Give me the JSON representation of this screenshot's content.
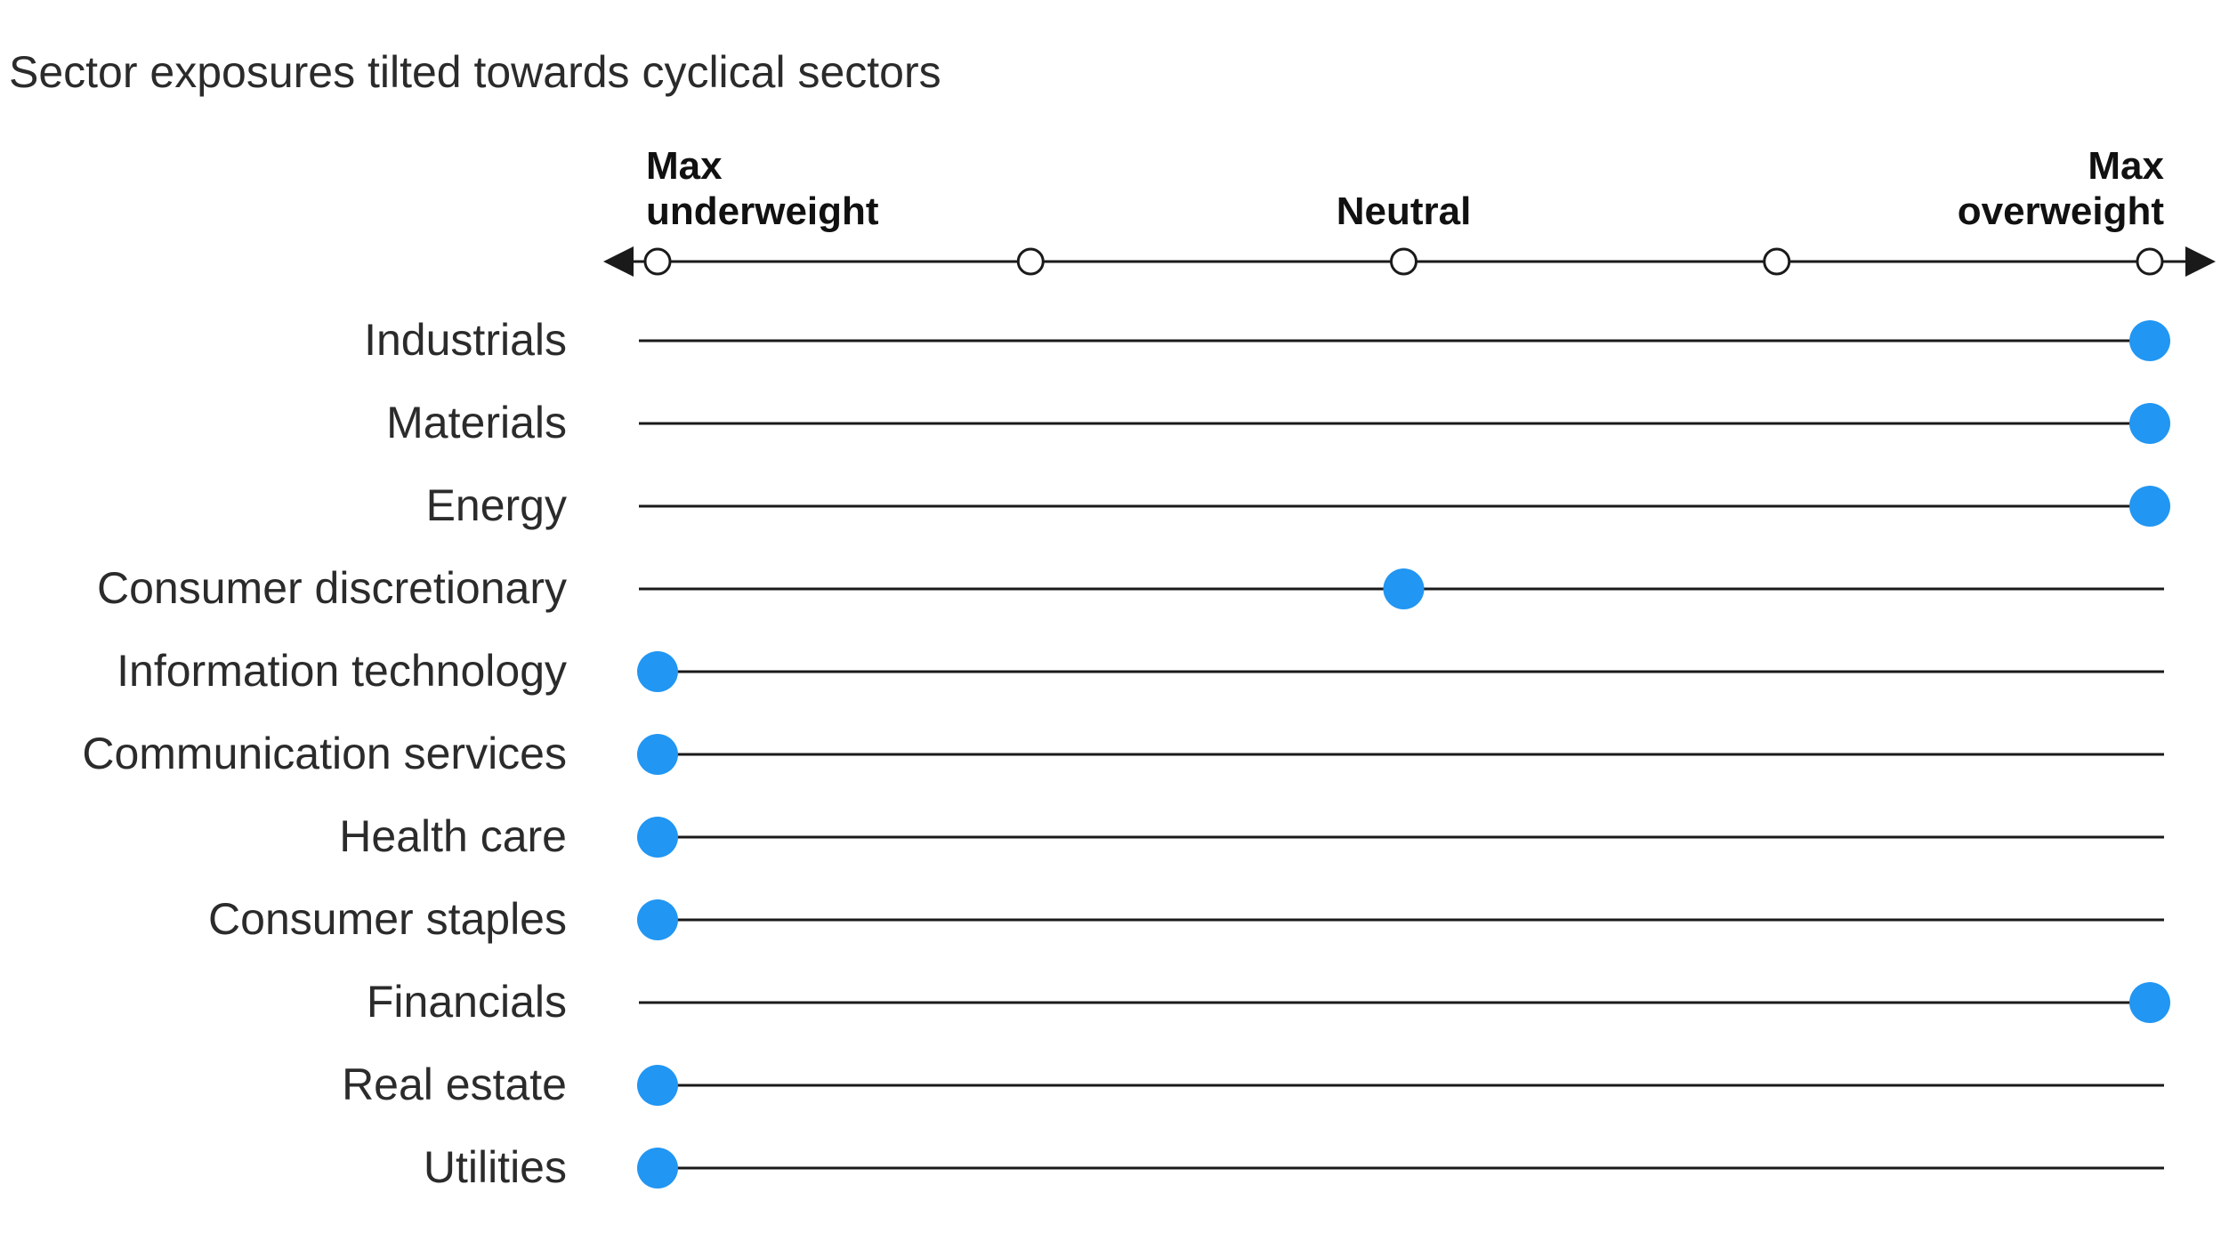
{
  "title": "Sector exposures tilted towards cyclical sectors",
  "chart_data": {
    "type": "scatter",
    "title": "Sector exposures tilted towards cyclical sectors",
    "scale_levels": 5,
    "scale_labels": [
      {
        "level": 0,
        "lines": [
          "Max",
          "underweight"
        ]
      },
      {
        "level": 2,
        "lines": [
          "Neutral"
        ]
      },
      {
        "level": 4,
        "lines": [
          "Max",
          "overweight"
        ]
      }
    ],
    "categories": [
      "Industrials",
      "Materials",
      "Energy",
      "Consumer discretionary",
      "Information technology",
      "Communication services",
      "Health care",
      "Consumer staples",
      "Financials",
      "Real estate",
      "Utilities"
    ],
    "values": [
      4,
      4,
      4,
      2,
      0,
      0,
      0,
      0,
      4,
      0,
      0
    ],
    "colors": {
      "marker": "#2196f3",
      "line": "#1a1a1a",
      "text": "#2b2b2b"
    }
  }
}
